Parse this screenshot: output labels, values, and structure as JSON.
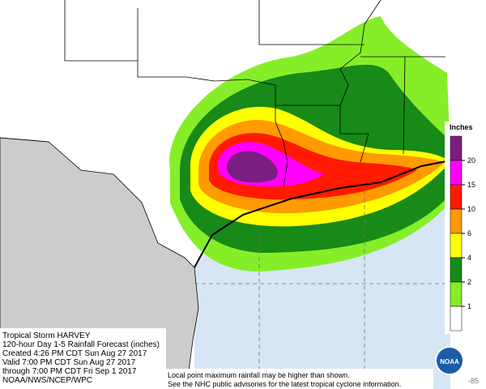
{
  "legend": {
    "title": "Inches",
    "levels": [
      20,
      15,
      10,
      6,
      4,
      2,
      1
    ],
    "colors": [
      "#7a1f7f",
      "#ff00ff",
      "#ff1a00",
      "#ff9a00",
      "#ffff00",
      "#178a17",
      "#86ee28",
      "#ffffff"
    ]
  },
  "caption": [
    "Tropical Storm HARVEY",
    "120-hour Day 1-5 Rainfall Forecast (inches)",
    "Created 4:26 PM CDT Sun Aug 27 2017",
    "Valid 7:00 PM CDT Sun Aug 27 2017",
    "through 7:00 PM CDT Fri Sep 1 2017",
    "NOAA/NWS/NCEP/WPC"
  ],
  "note": [
    "Local point maximum rainfall may be higher than shown.",
    "See the NHC public advisories for the latest tropical cyclone information."
  ],
  "logo": "NOAA",
  "longitude_label": -85
}
